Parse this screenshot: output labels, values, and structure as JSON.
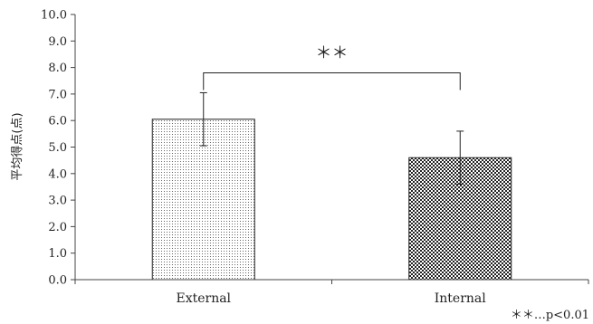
{
  "chart_data": {
    "type": "bar",
    "categories": [
      "External",
      "Internal"
    ],
    "values": [
      6.05,
      4.6
    ],
    "error": [
      1.0,
      1.0
    ],
    "ylabel": "平均得点(点)",
    "xlabel": "",
    "ylim": [
      0,
      10
    ],
    "ytick_step": 1,
    "yticks": [
      "0.0",
      "1.0",
      "2.0",
      "3.0",
      "4.0",
      "5.0",
      "6.0",
      "7.0",
      "8.0",
      "9.0",
      "10.0"
    ],
    "grid": false,
    "bar_patterns": [
      "fine-dots",
      "checker"
    ],
    "significance": {
      "label": "＊＊",
      "between": [
        0,
        1
      ],
      "level": 7.8
    },
    "footnote": "＊＊…p<0.01"
  }
}
